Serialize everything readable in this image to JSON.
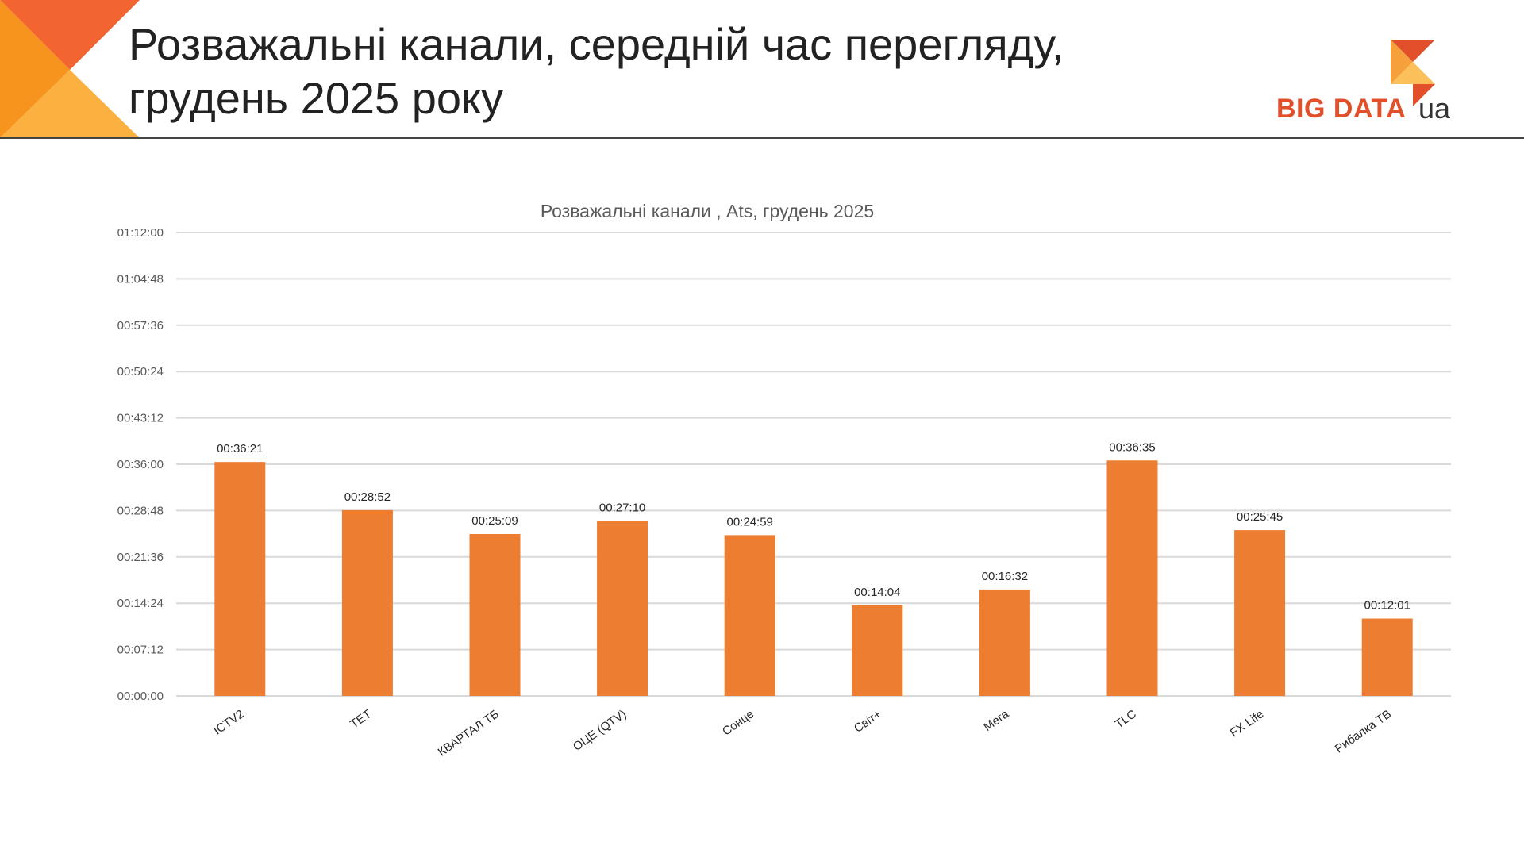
{
  "slide": {
    "title_line1": "Розважальні канали, середній час перегляду,",
    "title_line2": "грудень 2025 року"
  },
  "logo": {
    "text": "BIG DATA",
    "suffix": "ua",
    "colors": {
      "red": "#e2502b",
      "orange": "#f5a03a",
      "light": "#fbc05a"
    }
  },
  "chart_data": {
    "type": "bar",
    "title": "Розважальні канали , Ats, грудень 2025",
    "categories": [
      "ICTV2",
      "ТЕТ",
      "КВАРТАЛ ТБ",
      "ОЦЕ (QTV)",
      "Сонце",
      "Світ+",
      "Мега",
      "TLC",
      "FX Life",
      "Рибалка ТВ"
    ],
    "values_seconds": [
      2181,
      1732,
      1509,
      1630,
      1499,
      844,
      992,
      2195,
      1545,
      721
    ],
    "data_labels": [
      "00:36:21",
      "00:28:52",
      "00:25:09",
      "00:27:10",
      "00:24:59",
      "00:14:04",
      "00:16:32",
      "00:36:35",
      "00:25:45",
      "00:12:01"
    ],
    "ylim_seconds": [
      0,
      4320
    ],
    "y_ticks_seconds": [
      0,
      432,
      864,
      1296,
      1728,
      2160,
      2592,
      3024,
      3456,
      3888,
      4320
    ],
    "y_tick_labels": [
      "00:00:00",
      "00:07:12",
      "00:14:24",
      "00:21:36",
      "00:28:48",
      "00:36:00",
      "00:43:12",
      "00:50:24",
      "00:57:36",
      "01:04:48",
      "01:12:00"
    ],
    "grid": true,
    "bar_color": "#ed7d31",
    "grid_color": "#d9d9d9"
  }
}
